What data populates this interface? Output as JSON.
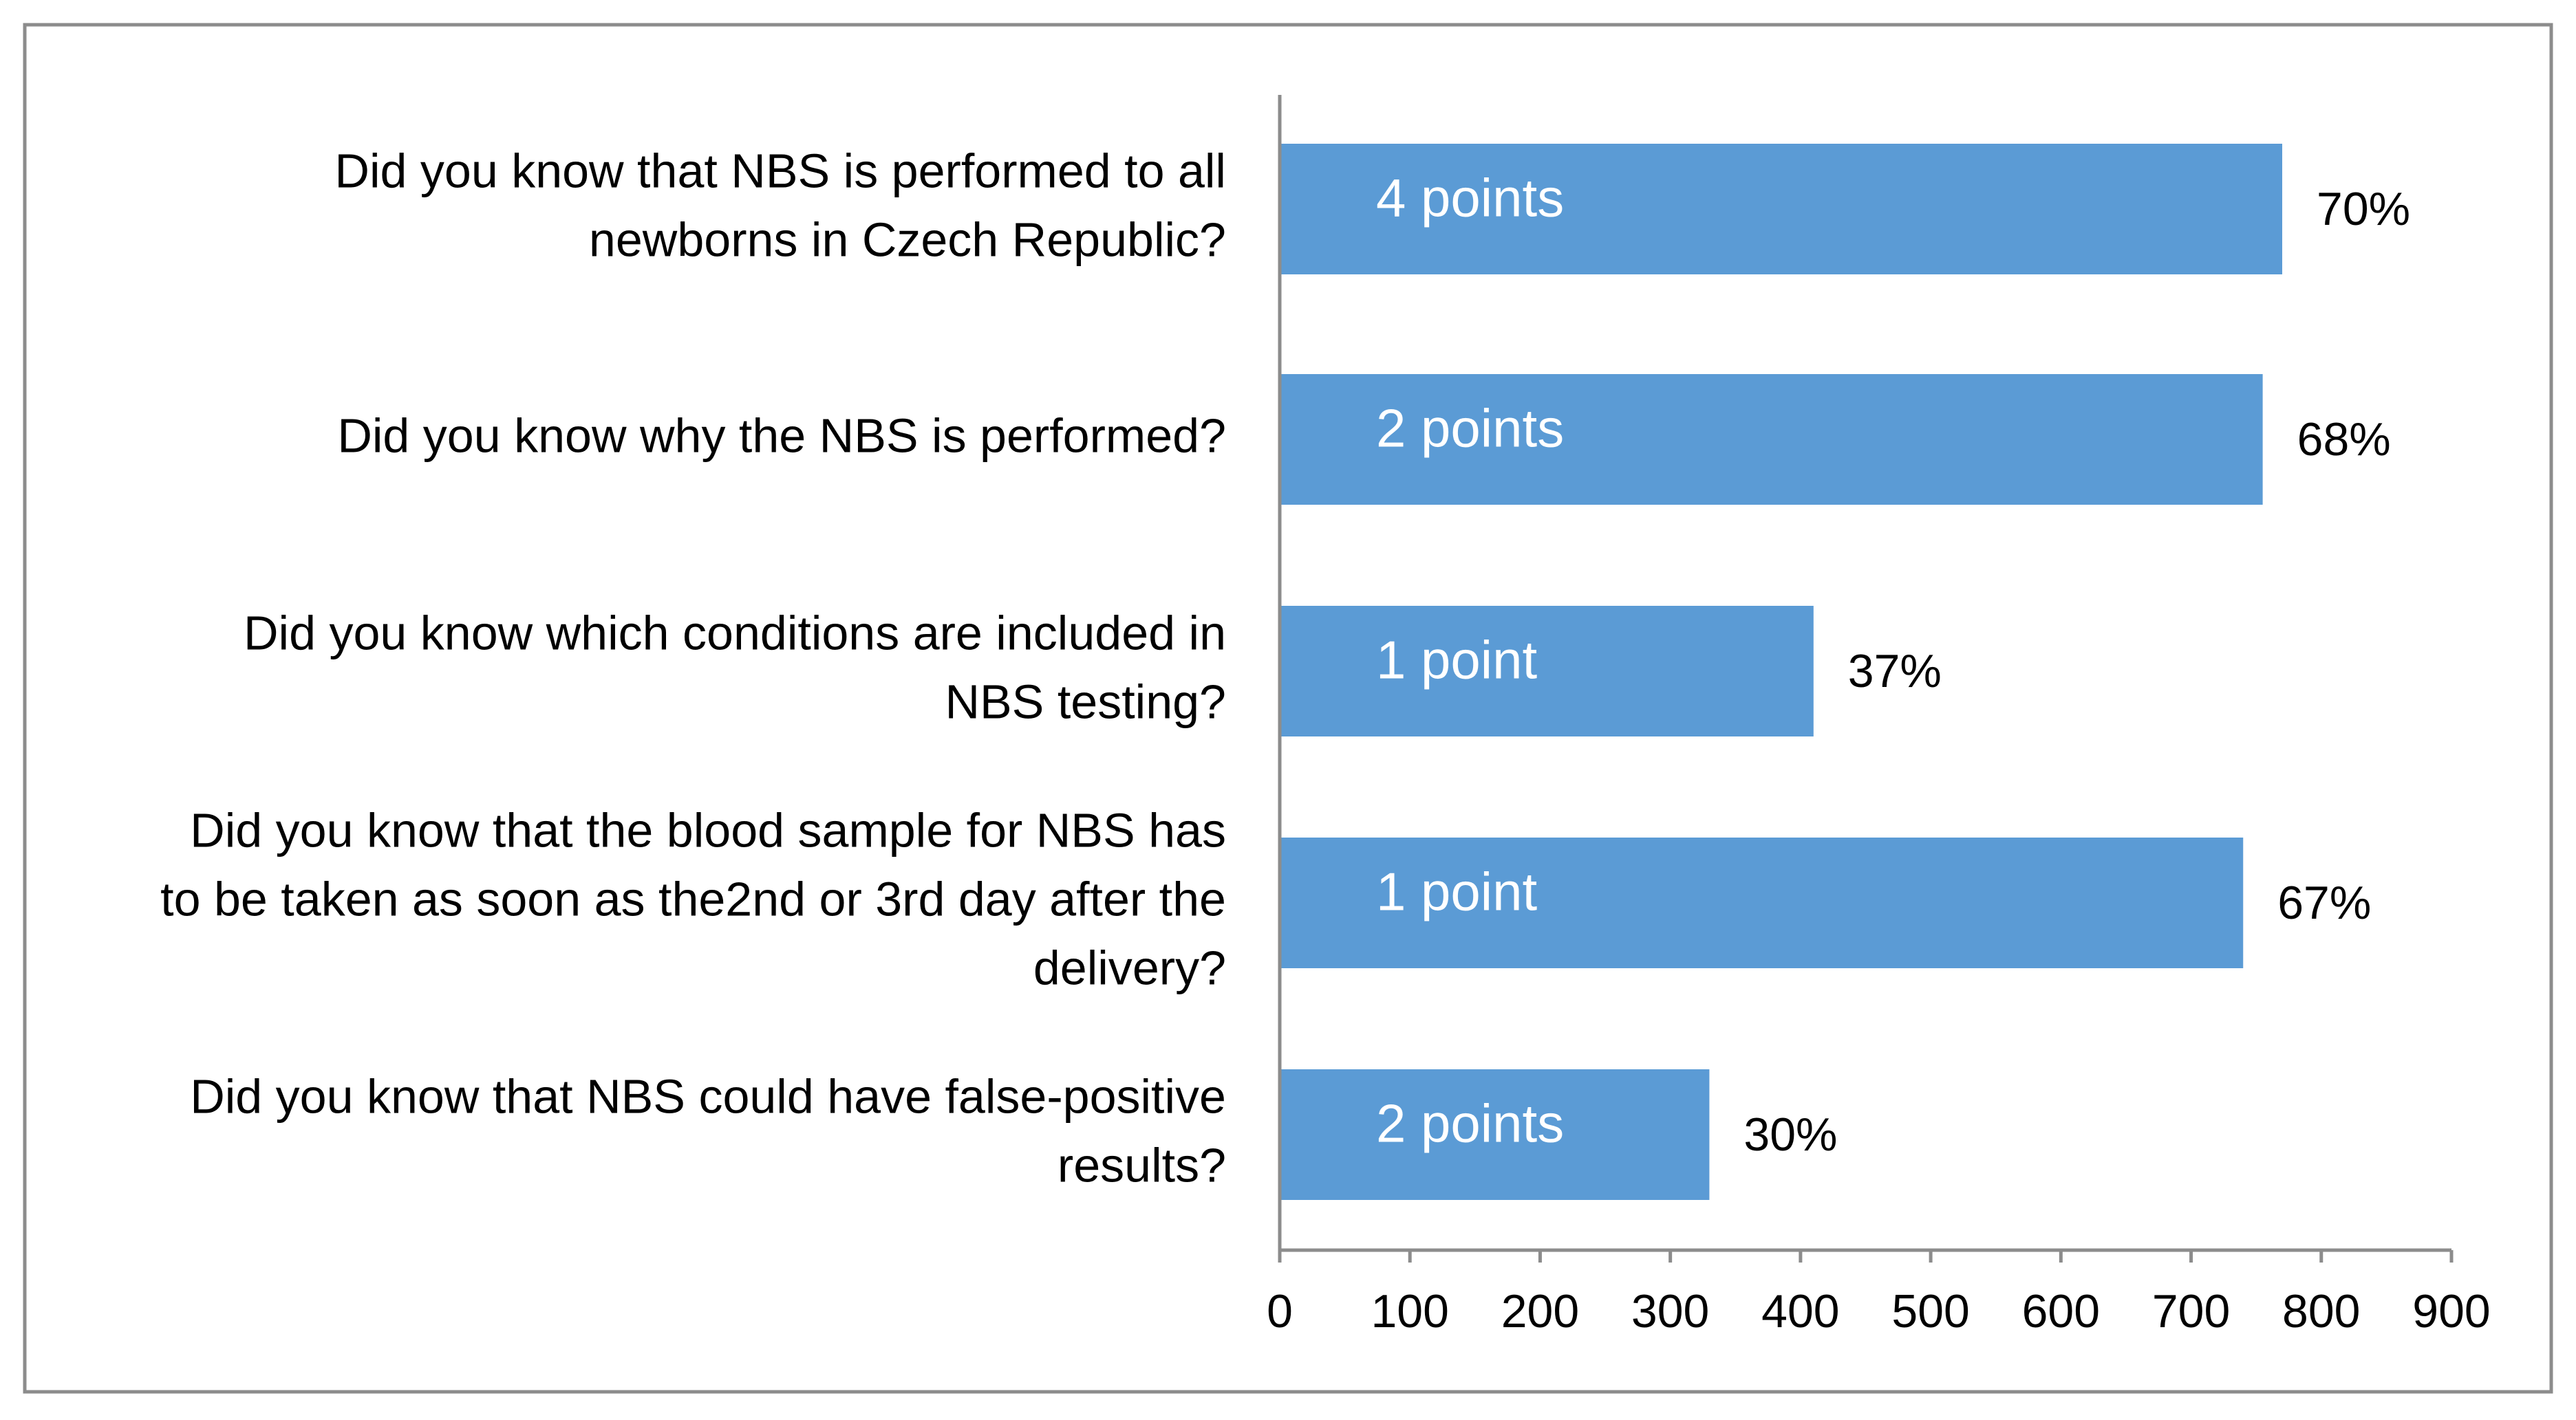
{
  "chart_data": {
    "type": "bar",
    "orientation": "horizontal",
    "categories": [
      [
        "Did you know that NBS is performed to all",
        "newborns in Czech Republic?"
      ],
      [
        "Did you know why the NBS is performed?"
      ],
      [
        "Did you know which conditions are included in",
        "NBS testing?"
      ],
      [
        "Did you know that the blood sample for NBS has",
        "to be taken as soon as the2nd or 3rd day after the",
        "delivery?"
      ],
      [
        "Did you know that NBS could have false-positive",
        "results?"
      ]
    ],
    "values": [
      770,
      755,
      410,
      740,
      330
    ],
    "bar_labels": [
      "4 points",
      "2 points",
      "1 point",
      "1 point",
      "2 points"
    ],
    "percent_labels": [
      "70%",
      "68%",
      "37%",
      "67%",
      "30%"
    ],
    "xlim": [
      0,
      900
    ],
    "xticks": [
      0,
      100,
      200,
      300,
      400,
      500,
      600,
      700,
      800,
      900
    ],
    "grid": false,
    "legend": false,
    "colors": {
      "bar": "#5b9bd5",
      "bar_text": "#ffffff",
      "text": "#000000",
      "axis": "#8c8c8c",
      "border": "#8c8c8c"
    }
  }
}
